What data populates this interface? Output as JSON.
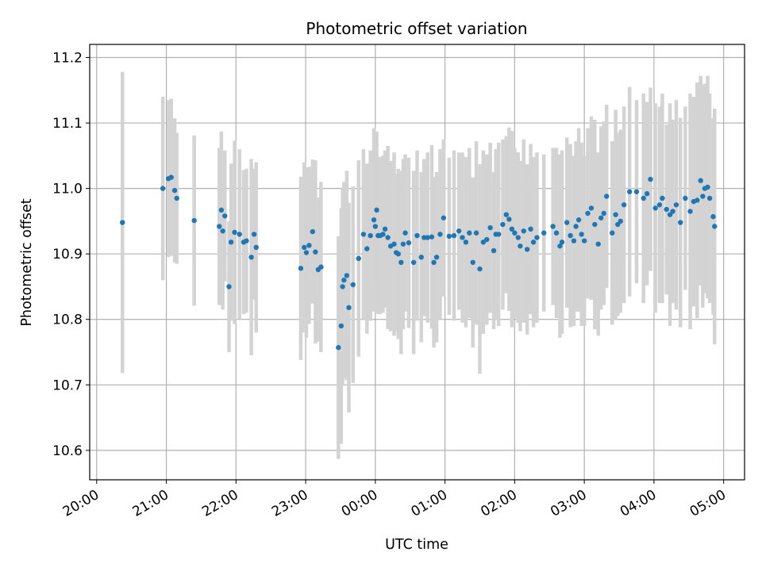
{
  "chart_data": {
    "type": "scatter",
    "title": "Photometric offset variation",
    "xlabel": "UTC time",
    "ylabel": "Photometric offset",
    "grid": true,
    "legend": "none",
    "x_axis": "time",
    "x_unit": "hours",
    "xlim": [
      -4.1,
      5.3
    ],
    "ylim": [
      10.555,
      11.22
    ],
    "xticks": [
      {
        "value": -4,
        "label": "20:00"
      },
      {
        "value": -3,
        "label": "21:00"
      },
      {
        "value": -2,
        "label": "22:00"
      },
      {
        "value": -1,
        "label": "23:00"
      },
      {
        "value": 0,
        "label": "00:00"
      },
      {
        "value": 1,
        "label": "01:00"
      },
      {
        "value": 2,
        "label": "02:00"
      },
      {
        "value": 3,
        "label": "03:00"
      },
      {
        "value": 4,
        "label": "04:00"
      },
      {
        "value": 5,
        "label": "05:00"
      }
    ],
    "yticks": [
      {
        "value": 10.6,
        "label": "10.6"
      },
      {
        "value": 10.7,
        "label": "10.7"
      },
      {
        "value": 10.8,
        "label": "10.8"
      },
      {
        "value": 10.9,
        "label": "10.9"
      },
      {
        "value": 11.0,
        "label": "11.0"
      },
      {
        "value": 11.1,
        "label": "11.1"
      },
      {
        "value": 11.2,
        "label": "11.2"
      }
    ],
    "colors": {
      "marker": "#1f77b4",
      "errorbar": "#d3d3d3",
      "grid": "#b0b0b0"
    },
    "series": [
      {
        "points": [
          [
            -3.63,
            10.948,
            0.23
          ],
          [
            -3.05,
            11.0,
            0.14
          ],
          [
            -2.97,
            11.015,
            0.12
          ],
          [
            -2.93,
            11.017,
            0.12
          ],
          [
            -2.88,
            10.997,
            0.11
          ],
          [
            -2.85,
            10.985,
            0.1
          ],
          [
            -2.6,
            10.951,
            0.13
          ],
          [
            -2.24,
            10.942,
            0.12
          ],
          [
            -2.21,
            10.967,
            0.12
          ],
          [
            -2.19,
            10.935,
            0.12
          ],
          [
            -2.16,
            10.958,
            0.1
          ],
          [
            -2.1,
            10.85,
            0.1
          ],
          [
            -2.07,
            10.918,
            0.12
          ],
          [
            -2.02,
            10.933,
            0.14
          ],
          [
            -1.95,
            10.93,
            0.13
          ],
          [
            -1.89,
            10.918,
            0.11
          ],
          [
            -1.85,
            10.92,
            0.11
          ],
          [
            -1.78,
            10.895,
            0.15
          ],
          [
            -1.74,
            10.93,
            0.1
          ],
          [
            -1.71,
            10.91,
            0.13
          ],
          [
            -1.07,
            10.878,
            0.14
          ],
          [
            -1.02,
            10.91,
            0.13
          ],
          [
            -0.99,
            10.902,
            0.13
          ],
          [
            -0.95,
            10.913,
            0.12
          ],
          [
            -0.9,
            10.934,
            0.11
          ],
          [
            -0.86,
            10.903,
            0.14
          ],
          [
            -0.82,
            10.876,
            0.11
          ],
          [
            -0.78,
            10.88,
            0.13
          ],
          [
            -0.53,
            10.757,
            0.17
          ],
          [
            -0.49,
            10.79,
            0.18
          ],
          [
            -0.47,
            10.85,
            0.15
          ],
          [
            -0.45,
            10.86,
            0.15
          ],
          [
            -0.41,
            10.867,
            0.16
          ],
          [
            -0.38,
            10.818,
            0.16
          ],
          [
            -0.32,
            10.853,
            0.15
          ],
          [
            -0.24,
            10.893,
            0.15
          ],
          [
            -0.17,
            10.93,
            0.13
          ],
          [
            -0.12,
            10.908,
            0.13
          ],
          [
            -0.07,
            10.928,
            0.13
          ],
          [
            -0.02,
            10.952,
            0.14
          ],
          [
            0.0,
            10.942,
            0.13
          ],
          [
            0.02,
            10.967,
            0.12
          ],
          [
            0.04,
            10.928,
            0.12
          ],
          [
            0.07,
            10.928,
            0.12
          ],
          [
            0.11,
            10.93,
            0.12
          ],
          [
            0.14,
            10.938,
            0.12
          ],
          [
            0.18,
            10.925,
            0.14
          ],
          [
            0.22,
            10.912,
            0.13
          ],
          [
            0.27,
            10.915,
            0.14
          ],
          [
            0.3,
            10.902,
            0.12
          ],
          [
            0.33,
            10.9,
            0.13
          ],
          [
            0.37,
            10.887,
            0.14
          ],
          [
            0.4,
            10.915,
            0.13
          ],
          [
            0.43,
            10.932,
            0.12
          ],
          [
            0.48,
            10.917,
            0.13
          ],
          [
            0.55,
            10.887,
            0.14
          ],
          [
            0.6,
            10.928,
            0.13
          ],
          [
            0.66,
            10.895,
            0.13
          ],
          [
            0.7,
            10.925,
            0.12
          ],
          [
            0.75,
            10.925,
            0.13
          ],
          [
            0.81,
            10.926,
            0.14
          ],
          [
            0.84,
            10.887,
            0.13
          ],
          [
            0.88,
            10.895,
            0.13
          ],
          [
            0.93,
            10.93,
            0.13
          ],
          [
            0.98,
            10.955,
            0.12
          ],
          [
            1.06,
            10.927,
            0.12
          ],
          [
            1.13,
            10.928,
            0.13
          ],
          [
            1.2,
            10.935,
            0.12
          ],
          [
            1.25,
            10.925,
            0.13
          ],
          [
            1.3,
            10.918,
            0.13
          ],
          [
            1.35,
            10.932,
            0.13
          ],
          [
            1.4,
            10.887,
            0.13
          ],
          [
            1.45,
            10.932,
            0.14
          ],
          [
            1.5,
            10.877,
            0.16
          ],
          [
            1.55,
            10.918,
            0.14
          ],
          [
            1.6,
            10.922,
            0.13
          ],
          [
            1.65,
            10.94,
            0.13
          ],
          [
            1.7,
            10.905,
            0.12
          ],
          [
            1.73,
            10.93,
            0.13
          ],
          [
            1.77,
            10.93,
            0.14
          ],
          [
            1.83,
            10.945,
            0.13
          ],
          [
            1.88,
            10.96,
            0.12
          ],
          [
            1.92,
            10.953,
            0.14
          ],
          [
            1.96,
            10.938,
            0.15
          ],
          [
            2.0,
            10.932,
            0.13
          ],
          [
            2.05,
            10.925,
            0.13
          ],
          [
            2.08,
            10.912,
            0.13
          ],
          [
            2.13,
            10.935,
            0.14
          ],
          [
            2.18,
            10.907,
            0.13
          ],
          [
            2.23,
            10.938,
            0.13
          ],
          [
            2.27,
            10.918,
            0.13
          ],
          [
            2.32,
            10.925,
            0.13
          ],
          [
            2.42,
            10.932,
            0.12
          ],
          [
            2.55,
            10.942,
            0.12
          ],
          [
            2.6,
            10.932,
            0.13
          ],
          [
            2.65,
            10.912,
            0.14
          ],
          [
            2.68,
            10.918,
            0.14
          ],
          [
            2.75,
            10.948,
            0.13
          ],
          [
            2.8,
            10.928,
            0.14
          ],
          [
            2.85,
            10.92,
            0.13
          ],
          [
            2.88,
            10.942,
            0.13
          ],
          [
            2.92,
            10.952,
            0.14
          ],
          [
            2.96,
            10.93,
            0.14
          ],
          [
            3.0,
            10.92,
            0.13
          ],
          [
            3.05,
            10.962,
            0.13
          ],
          [
            3.1,
            10.97,
            0.14
          ],
          [
            3.15,
            10.945,
            0.16
          ],
          [
            3.2,
            10.915,
            0.14
          ],
          [
            3.24,
            10.955,
            0.14
          ],
          [
            3.28,
            10.962,
            0.14
          ],
          [
            3.32,
            10.988,
            0.14
          ],
          [
            3.4,
            10.932,
            0.14
          ],
          [
            3.45,
            10.96,
            0.16
          ],
          [
            3.48,
            10.945,
            0.14
          ],
          [
            3.52,
            10.95,
            0.14
          ],
          [
            3.57,
            10.975,
            0.15
          ],
          [
            3.65,
            10.995,
            0.16
          ],
          [
            3.75,
            10.995,
            0.14
          ],
          [
            3.85,
            10.985,
            0.16
          ],
          [
            3.9,
            10.992,
            0.14
          ],
          [
            3.95,
            11.014,
            0.14
          ],
          [
            4.02,
            10.97,
            0.16
          ],
          [
            4.08,
            10.975,
            0.15
          ],
          [
            4.12,
            10.985,
            0.16
          ],
          [
            4.18,
            10.968,
            0.13
          ],
          [
            4.23,
            10.96,
            0.17
          ],
          [
            4.27,
            10.965,
            0.14
          ],
          [
            4.32,
            10.975,
            0.16
          ],
          [
            4.38,
            10.948,
            0.16
          ],
          [
            4.45,
            10.985,
            0.14
          ],
          [
            4.52,
            10.965,
            0.18
          ],
          [
            4.57,
            10.98,
            0.16
          ],
          [
            4.62,
            10.982,
            0.18
          ],
          [
            4.67,
            11.012,
            0.16
          ],
          [
            4.7,
            10.988,
            0.17
          ],
          [
            4.73,
            11.0,
            0.16
          ],
          [
            4.77,
            11.002,
            0.17
          ],
          [
            4.8,
            10.985,
            0.16
          ],
          [
            4.85,
            10.957,
            0.15
          ],
          [
            4.87,
            10.942,
            0.18
          ]
        ]
      }
    ]
  }
}
